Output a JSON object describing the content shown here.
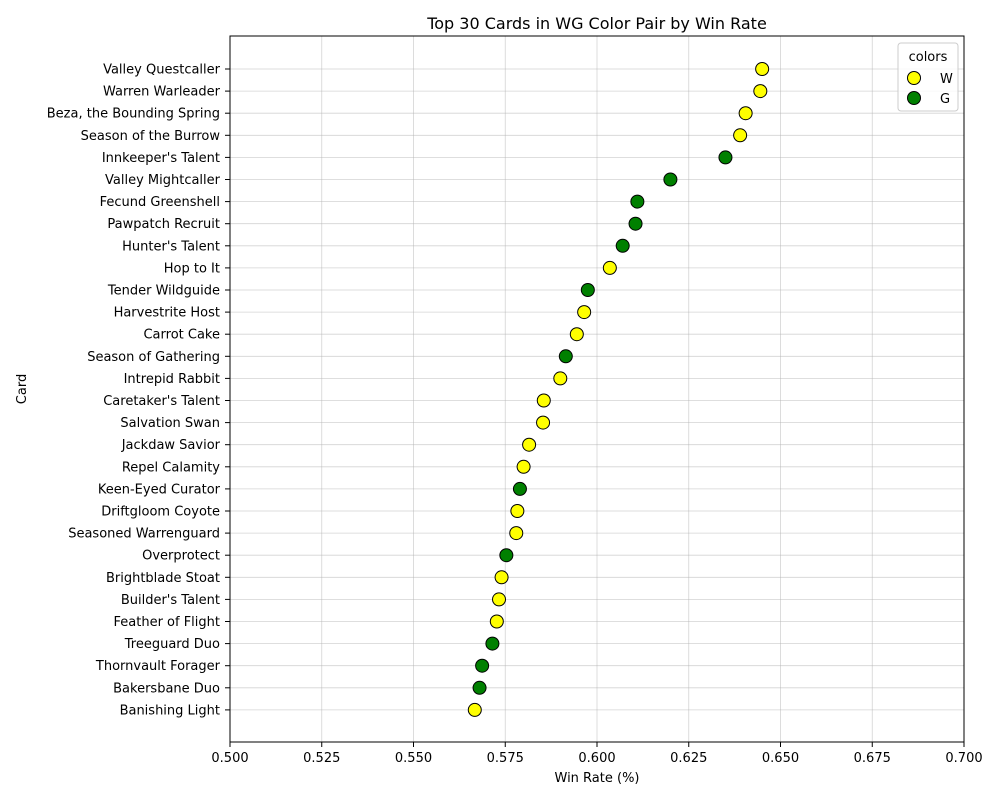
{
  "chart_data": {
    "type": "scatter",
    "title": "Top 30 Cards in WG Color Pair by Win Rate",
    "xlabel": "Win Rate (%)",
    "ylabel": "Card",
    "xlim": [
      0.5,
      0.7
    ],
    "xticks": [
      "0.500",
      "0.525",
      "0.550",
      "0.575",
      "0.600",
      "0.625",
      "0.650",
      "0.675",
      "0.700"
    ],
    "grid": true,
    "legend": {
      "title": "colors",
      "placement": "top-right",
      "entries": [
        {
          "label": "W",
          "color": "#ffff00"
        },
        {
          "label": "G",
          "color": "#008000"
        }
      ]
    },
    "colors": {
      "W": "#ffff00",
      "G": "#008000"
    },
    "points": [
      {
        "card": "Valley Questcaller",
        "win_rate": 0.645,
        "color": "W"
      },
      {
        "card": "Warren Warleader",
        "win_rate": 0.6445,
        "color": "W"
      },
      {
        "card": "Beza, the Bounding Spring",
        "win_rate": 0.6405,
        "color": "W"
      },
      {
        "card": "Season of the Burrow",
        "win_rate": 0.639,
        "color": "W"
      },
      {
        "card": "Innkeeper's Talent",
        "win_rate": 0.635,
        "color": "G"
      },
      {
        "card": "Valley Mightcaller",
        "win_rate": 0.62,
        "color": "G"
      },
      {
        "card": "Fecund Greenshell",
        "win_rate": 0.611,
        "color": "G"
      },
      {
        "card": "Pawpatch Recruit",
        "win_rate": 0.6105,
        "color": "G"
      },
      {
        "card": "Hunter's Talent",
        "win_rate": 0.607,
        "color": "G"
      },
      {
        "card": "Hop to It",
        "win_rate": 0.6035,
        "color": "W"
      },
      {
        "card": "Tender Wildguide",
        "win_rate": 0.5975,
        "color": "G"
      },
      {
        "card": "Harvestrite Host",
        "win_rate": 0.5965,
        "color": "W"
      },
      {
        "card": "Carrot Cake",
        "win_rate": 0.5945,
        "color": "W"
      },
      {
        "card": "Season of Gathering",
        "win_rate": 0.5915,
        "color": "G"
      },
      {
        "card": "Intrepid Rabbit",
        "win_rate": 0.59,
        "color": "W"
      },
      {
        "card": "Caretaker's Talent",
        "win_rate": 0.5855,
        "color": "W"
      },
      {
        "card": "Salvation Swan",
        "win_rate": 0.5853,
        "color": "W"
      },
      {
        "card": "Jackdaw Savior",
        "win_rate": 0.5815,
        "color": "W"
      },
      {
        "card": "Repel Calamity",
        "win_rate": 0.58,
        "color": "W"
      },
      {
        "card": "Keen-Eyed Curator",
        "win_rate": 0.579,
        "color": "G"
      },
      {
        "card": "Driftgloom Coyote",
        "win_rate": 0.5783,
        "color": "W"
      },
      {
        "card": "Seasoned Warrenguard",
        "win_rate": 0.578,
        "color": "W"
      },
      {
        "card": "Overprotect",
        "win_rate": 0.5753,
        "color": "G"
      },
      {
        "card": "Brightblade Stoat",
        "win_rate": 0.574,
        "color": "W"
      },
      {
        "card": "Builder's Talent",
        "win_rate": 0.5733,
        "color": "W"
      },
      {
        "card": "Feather of Flight",
        "win_rate": 0.5727,
        "color": "W"
      },
      {
        "card": "Treeguard Duo",
        "win_rate": 0.5715,
        "color": "G"
      },
      {
        "card": "Thornvault Forager",
        "win_rate": 0.5687,
        "color": "G"
      },
      {
        "card": "Bakersbane Duo",
        "win_rate": 0.568,
        "color": "G"
      },
      {
        "card": "Banishing Light",
        "win_rate": 0.5667,
        "color": "W"
      }
    ]
  }
}
